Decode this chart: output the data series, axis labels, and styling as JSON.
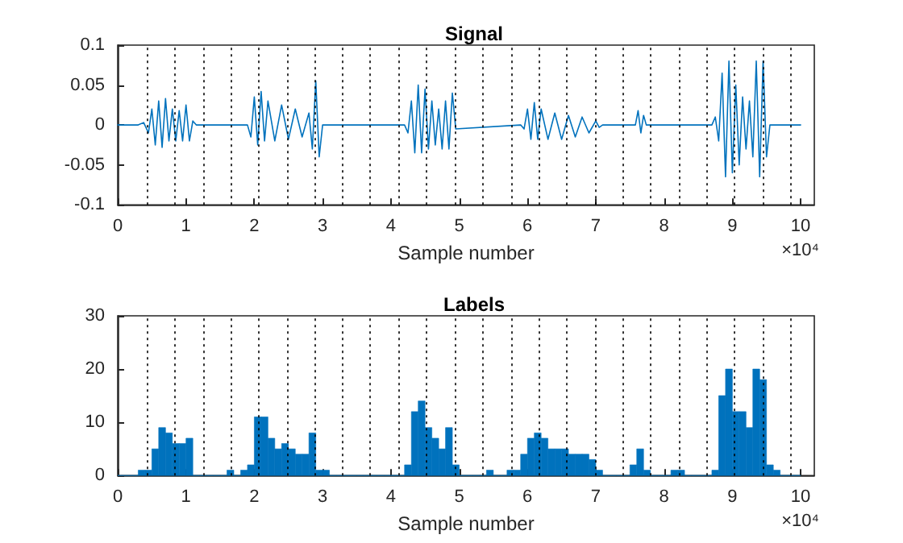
{
  "chart_data": [
    {
      "type": "line",
      "title": "Signal",
      "xlabel": "Sample number",
      "annotations": [
        "×10⁴"
      ],
      "x": [
        0,
        0.3,
        0.38,
        0.45,
        0.5,
        0.55,
        0.6,
        0.65,
        0.7,
        0.75,
        0.8,
        0.85,
        0.9,
        0.95,
        1.0,
        1.05,
        1.1,
        1.15,
        1.9,
        1.95,
        2.0,
        2.05,
        2.1,
        2.15,
        2.2,
        2.3,
        2.4,
        2.5,
        2.6,
        2.7,
        2.8,
        2.85,
        2.9,
        2.95,
        3.0,
        4.2,
        4.25,
        4.3,
        4.35,
        4.4,
        4.45,
        4.5,
        4.55,
        4.6,
        4.65,
        4.7,
        4.75,
        4.8,
        4.85,
        4.9,
        4.95,
        5.9,
        5.95,
        6.0,
        6.05,
        6.1,
        6.15,
        6.2,
        6.3,
        6.4,
        6.5,
        6.6,
        6.7,
        6.8,
        6.9,
        7.0,
        7.05,
        7.1,
        7.58,
        7.62,
        7.66,
        7.7,
        7.74,
        8.7,
        8.75,
        8.8,
        8.85,
        8.9,
        8.95,
        9.0,
        9.05,
        9.1,
        9.15,
        9.2,
        9.25,
        9.3,
        9.35,
        9.4,
        9.45,
        9.5,
        9.55,
        10.0
      ],
      "series": [
        {
          "color": "#0072bd",
          "values": [
            0,
            0,
            0.003,
            -0.01,
            0.02,
            -0.025,
            0.03,
            -0.028,
            0.033,
            -0.02,
            0.02,
            -0.02,
            0.018,
            -0.02,
            0.025,
            -0.02,
            0.005,
            0,
            0,
            -0.015,
            0.035,
            -0.025,
            0.042,
            -0.02,
            0.03,
            -0.02,
            0.025,
            -0.018,
            0.02,
            -0.015,
            0.015,
            -0.03,
            0.055,
            -0.04,
            0,
            0,
            -0.01,
            0.03,
            -0.035,
            0.05,
            -0.035,
            0.045,
            -0.03,
            0.03,
            -0.025,
            0.02,
            -0.03,
            0.03,
            -0.03,
            0.04,
            -0.005,
            0,
            -0.005,
            0.02,
            -0.018,
            0.028,
            -0.018,
            0.02,
            -0.018,
            0.015,
            -0.018,
            0.012,
            -0.015,
            0.01,
            -0.01,
            0.005,
            -0.003,
            0,
            0,
            0.018,
            -0.01,
            0.012,
            0,
            0,
            0.01,
            -0.02,
            0.065,
            -0.065,
            0.08,
            -0.06,
            0.05,
            -0.05,
            0.035,
            -0.03,
            0.03,
            -0.04,
            0.08,
            -0.065,
            0.08,
            -0.04,
            0,
            0
          ]
        }
      ],
      "xlim": [
        0,
        10.2
      ],
      "xticks": [
        0,
        1,
        2,
        3,
        4,
        5,
        6,
        7,
        8,
        9,
        10
      ],
      "ylim": [
        -0.1,
        0.1
      ],
      "yticks": [
        -0.1,
        -0.05,
        0,
        0.05,
        0.1
      ],
      "grid": false,
      "marker": "none",
      "line_style": "solid",
      "ref_lines": [
        {
          "axis": "x",
          "value": 0.425,
          "color": "#000000",
          "line_style": "dotted"
        },
        {
          "axis": "x",
          "value": 0.83,
          "color": "#000000",
          "line_style": "dotted"
        },
        {
          "axis": "x",
          "value": 1.26,
          "color": "#000000",
          "line_style": "dotted"
        },
        {
          "axis": "x",
          "value": 1.65,
          "color": "#000000",
          "line_style": "dotted"
        },
        {
          "axis": "x",
          "value": 2.06,
          "color": "#000000",
          "line_style": "dotted"
        },
        {
          "axis": "x",
          "value": 2.48,
          "color": "#000000",
          "line_style": "dotted"
        },
        {
          "axis": "x",
          "value": 2.88,
          "color": "#000000",
          "line_style": "dotted"
        },
        {
          "axis": "x",
          "value": 3.28,
          "color": "#000000",
          "line_style": "dotted"
        },
        {
          "axis": "x",
          "value": 3.7,
          "color": "#000000",
          "line_style": "dotted"
        },
        {
          "axis": "x",
          "value": 4.12,
          "color": "#000000",
          "line_style": "dotted"
        },
        {
          "axis": "x",
          "value": 4.51,
          "color": "#000000",
          "line_style": "dotted"
        },
        {
          "axis": "x",
          "value": 4.94,
          "color": "#000000",
          "line_style": "dotted"
        },
        {
          "axis": "x",
          "value": 5.35,
          "color": "#000000",
          "line_style": "dotted"
        },
        {
          "axis": "x",
          "value": 5.76,
          "color": "#000000",
          "line_style": "dotted"
        },
        {
          "axis": "x",
          "value": 6.17,
          "color": "#000000",
          "line_style": "dotted"
        },
        {
          "axis": "x",
          "value": 6.57,
          "color": "#000000",
          "line_style": "dotted"
        },
        {
          "axis": "x",
          "value": 7.0,
          "color": "#000000",
          "line_style": "dotted"
        },
        {
          "axis": "x",
          "value": 7.4,
          "color": "#000000",
          "line_style": "dotted"
        },
        {
          "axis": "x",
          "value": 7.8,
          "color": "#000000",
          "line_style": "dotted"
        },
        {
          "axis": "x",
          "value": 8.23,
          "color": "#000000",
          "line_style": "dotted"
        },
        {
          "axis": "x",
          "value": 8.62,
          "color": "#000000",
          "line_style": "dotted"
        },
        {
          "axis": "x",
          "value": 9.02,
          "color": "#000000",
          "line_style": "dotted"
        },
        {
          "axis": "x",
          "value": 9.44,
          "color": "#000000",
          "line_style": "dotted"
        },
        {
          "axis": "x",
          "value": 9.86,
          "color": "#000000",
          "line_style": "dotted"
        }
      ]
    },
    {
      "type": "histogram",
      "title": "Labels",
      "xlabel": "Sample number",
      "annotations": [
        "×10⁴"
      ],
      "color": "#0072bd",
      "bins": [
        0,
        0.1,
        0.2,
        0.3,
        0.4,
        0.5,
        0.6,
        0.7,
        0.8,
        0.9,
        1.0,
        1.1,
        1.2,
        1.3,
        1.4,
        1.5,
        1.6,
        1.7,
        1.8,
        1.9,
        2.0,
        2.1,
        2.2,
        2.3,
        2.4,
        2.5,
        2.6,
        2.7,
        2.8,
        2.9,
        3.0,
        3.1,
        3.2,
        3.3,
        3.4,
        3.5,
        3.6,
        3.7,
        3.8,
        3.9,
        4.0,
        4.1,
        4.2,
        4.3,
        4.4,
        4.5,
        4.6,
        4.7,
        4.8,
        4.9,
        5.0,
        5.1,
        5.2,
        5.3,
        5.4,
        5.5,
        5.6,
        5.7,
        5.8,
        5.9,
        6.0,
        6.1,
        6.2,
        6.3,
        6.4,
        6.5,
        6.6,
        6.7,
        6.8,
        6.9,
        7.0,
        7.1,
        7.2,
        7.3,
        7.4,
        7.5,
        7.6,
        7.7,
        7.8,
        7.9,
        8.0,
        8.1,
        8.2,
        8.3,
        8.4,
        8.5,
        8.6,
        8.7,
        8.8,
        8.9,
        9.0,
        9.1,
        9.2,
        9.3,
        9.4,
        9.5,
        9.6,
        9.7,
        9.8,
        9.9,
        10.0
      ],
      "values": [
        0,
        0,
        0,
        1,
        1,
        5,
        9,
        8,
        6,
        6,
        7,
        0,
        0,
        0,
        0,
        0,
        1,
        0,
        1,
        2,
        11,
        11,
        7,
        5,
        6,
        5,
        4,
        4,
        8,
        1,
        1,
        0,
        0,
        0,
        0,
        0,
        0,
        0,
        0,
        0,
        0,
        0,
        2,
        12,
        14,
        9,
        7,
        5,
        9,
        2,
        0,
        0,
        0,
        0,
        1,
        0,
        0,
        1,
        1,
        4,
        7,
        8,
        7,
        5,
        5,
        5,
        4,
        4,
        4,
        3,
        1,
        0,
        0,
        0,
        0,
        2,
        5,
        1,
        0,
        0,
        0,
        1,
        1,
        0,
        0,
        0,
        0,
        1,
        15,
        20,
        12,
        12,
        9,
        20,
        18,
        2,
        1,
        0,
        0,
        0
      ],
      "xlim": [
        0,
        10.2
      ],
      "xticks": [
        0,
        1,
        2,
        3,
        4,
        5,
        6,
        7,
        8,
        9,
        10
      ],
      "ylim": [
        0,
        30
      ],
      "yticks": [
        0,
        10,
        20,
        30
      ],
      "grid": false,
      "ref_lines": [
        {
          "axis": "x",
          "value": 0.425,
          "color": "#000000",
          "line_style": "dotted"
        },
        {
          "axis": "x",
          "value": 0.83,
          "color": "#000000",
          "line_style": "dotted"
        },
        {
          "axis": "x",
          "value": 1.26,
          "color": "#000000",
          "line_style": "dotted"
        },
        {
          "axis": "x",
          "value": 1.65,
          "color": "#000000",
          "line_style": "dotted"
        },
        {
          "axis": "x",
          "value": 2.06,
          "color": "#000000",
          "line_style": "dotted"
        },
        {
          "axis": "x",
          "value": 2.48,
          "color": "#000000",
          "line_style": "dotted"
        },
        {
          "axis": "x",
          "value": 2.88,
          "color": "#000000",
          "line_style": "dotted"
        },
        {
          "axis": "x",
          "value": 3.28,
          "color": "#000000",
          "line_style": "dotted"
        },
        {
          "axis": "x",
          "value": 3.7,
          "color": "#000000",
          "line_style": "dotted"
        },
        {
          "axis": "x",
          "value": 4.12,
          "color": "#000000",
          "line_style": "dotted"
        },
        {
          "axis": "x",
          "value": 4.51,
          "color": "#000000",
          "line_style": "dotted"
        },
        {
          "axis": "x",
          "value": 4.94,
          "color": "#000000",
          "line_style": "dotted"
        },
        {
          "axis": "x",
          "value": 5.35,
          "color": "#000000",
          "line_style": "dotted"
        },
        {
          "axis": "x",
          "value": 5.76,
          "color": "#000000",
          "line_style": "dotted"
        },
        {
          "axis": "x",
          "value": 6.17,
          "color": "#000000",
          "line_style": "dotted"
        },
        {
          "axis": "x",
          "value": 6.57,
          "color": "#000000",
          "line_style": "dotted"
        },
        {
          "axis": "x",
          "value": 7.0,
          "color": "#000000",
          "line_style": "dotted"
        },
        {
          "axis": "x",
          "value": 7.4,
          "color": "#000000",
          "line_style": "dotted"
        },
        {
          "axis": "x",
          "value": 7.8,
          "color": "#000000",
          "line_style": "dotted"
        },
        {
          "axis": "x",
          "value": 8.23,
          "color": "#000000",
          "line_style": "dotted"
        },
        {
          "axis": "x",
          "value": 8.62,
          "color": "#000000",
          "line_style": "dotted"
        },
        {
          "axis": "x",
          "value": 9.02,
          "color": "#000000",
          "line_style": "dotted"
        },
        {
          "axis": "x",
          "value": 9.44,
          "color": "#000000",
          "line_style": "dotted"
        },
        {
          "axis": "x",
          "value": 9.86,
          "color": "#000000",
          "line_style": "dotted"
        }
      ]
    }
  ]
}
